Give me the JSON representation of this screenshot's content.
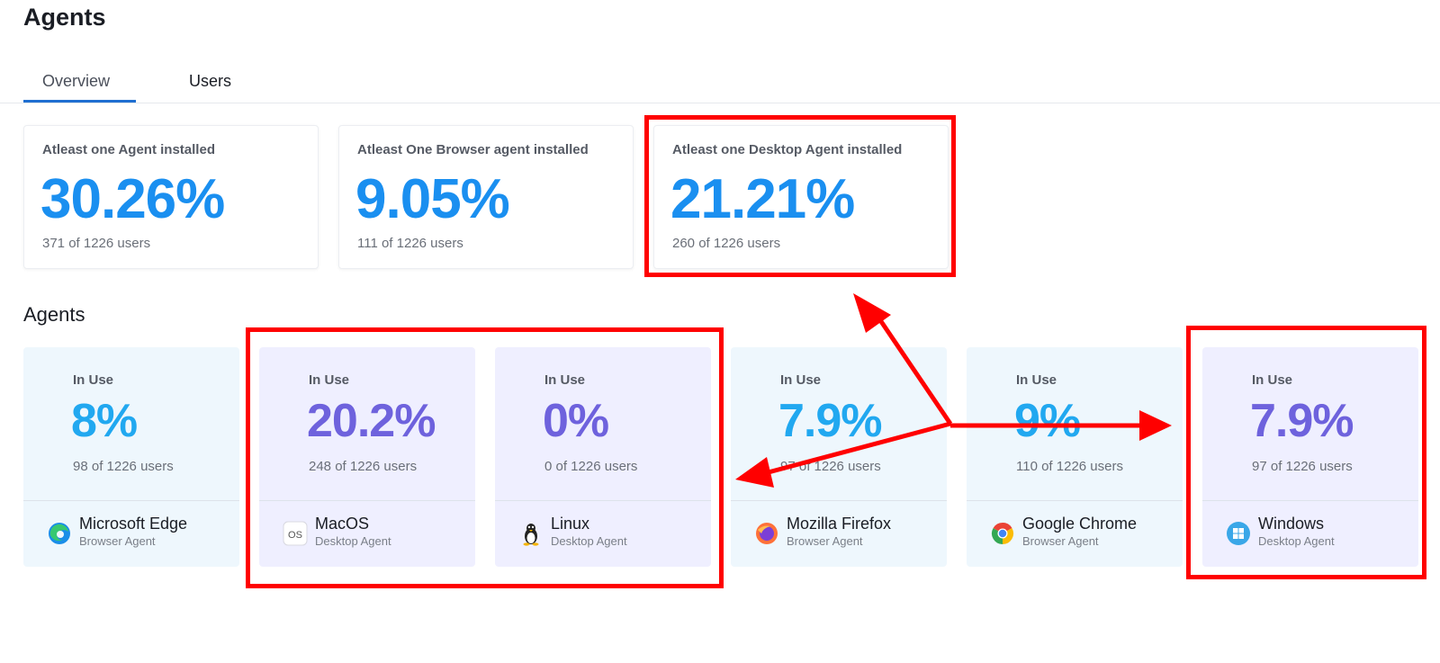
{
  "page": {
    "title": "Agents"
  },
  "tabs": [
    {
      "label": "Overview",
      "active": true
    },
    {
      "label": "Users",
      "active": false
    }
  ],
  "stats": [
    {
      "label": "Atleast one Agent installed",
      "value": "30.26%",
      "sub": "371 of 1226 users"
    },
    {
      "label": "Atleast One Browser agent installed",
      "value": "9.05%",
      "sub": "111 of 1226 users"
    },
    {
      "label": "Atleast one Desktop Agent installed",
      "value": "21.21%",
      "sub": "260 of 1226 users"
    }
  ],
  "section": {
    "title": "Agents"
  },
  "agents": [
    {
      "inuse": "In Use",
      "pct": "8%",
      "users": "98 of 1226 users",
      "name": "Microsoft Edge",
      "type": "Browser Agent",
      "icon": "edge-icon"
    },
    {
      "inuse": "In Use",
      "pct": "20.2%",
      "users": "248 of 1226 users",
      "name": "MacOS",
      "type": "Desktop Agent",
      "icon": "macos-icon",
      "icon_text": "OS"
    },
    {
      "inuse": "In Use",
      "pct": "0%",
      "users": "0 of 1226 users",
      "name": "Linux",
      "type": "Desktop Agent",
      "icon": "linux-icon"
    },
    {
      "inuse": "In Use",
      "pct": "7.9%",
      "users": "97 of 1226 users",
      "name": "Mozilla Firefox",
      "type": "Browser Agent",
      "icon": "firefox-icon"
    },
    {
      "inuse": "In Use",
      "pct": "9%",
      "users": "110 of 1226 users",
      "name": "Google Chrome",
      "type": "Browser Agent",
      "icon": "chrome-icon"
    },
    {
      "inuse": "In Use",
      "pct": "7.9%",
      "users": "97 of 1226 users",
      "name": "Windows",
      "type": "Desktop Agent",
      "icon": "windows-icon"
    }
  ],
  "colors": {
    "accent": "#1f6fd1",
    "browser_value": "#21a8f0",
    "desktop_value": "#6e62dd",
    "annotation": "#ff0000"
  }
}
